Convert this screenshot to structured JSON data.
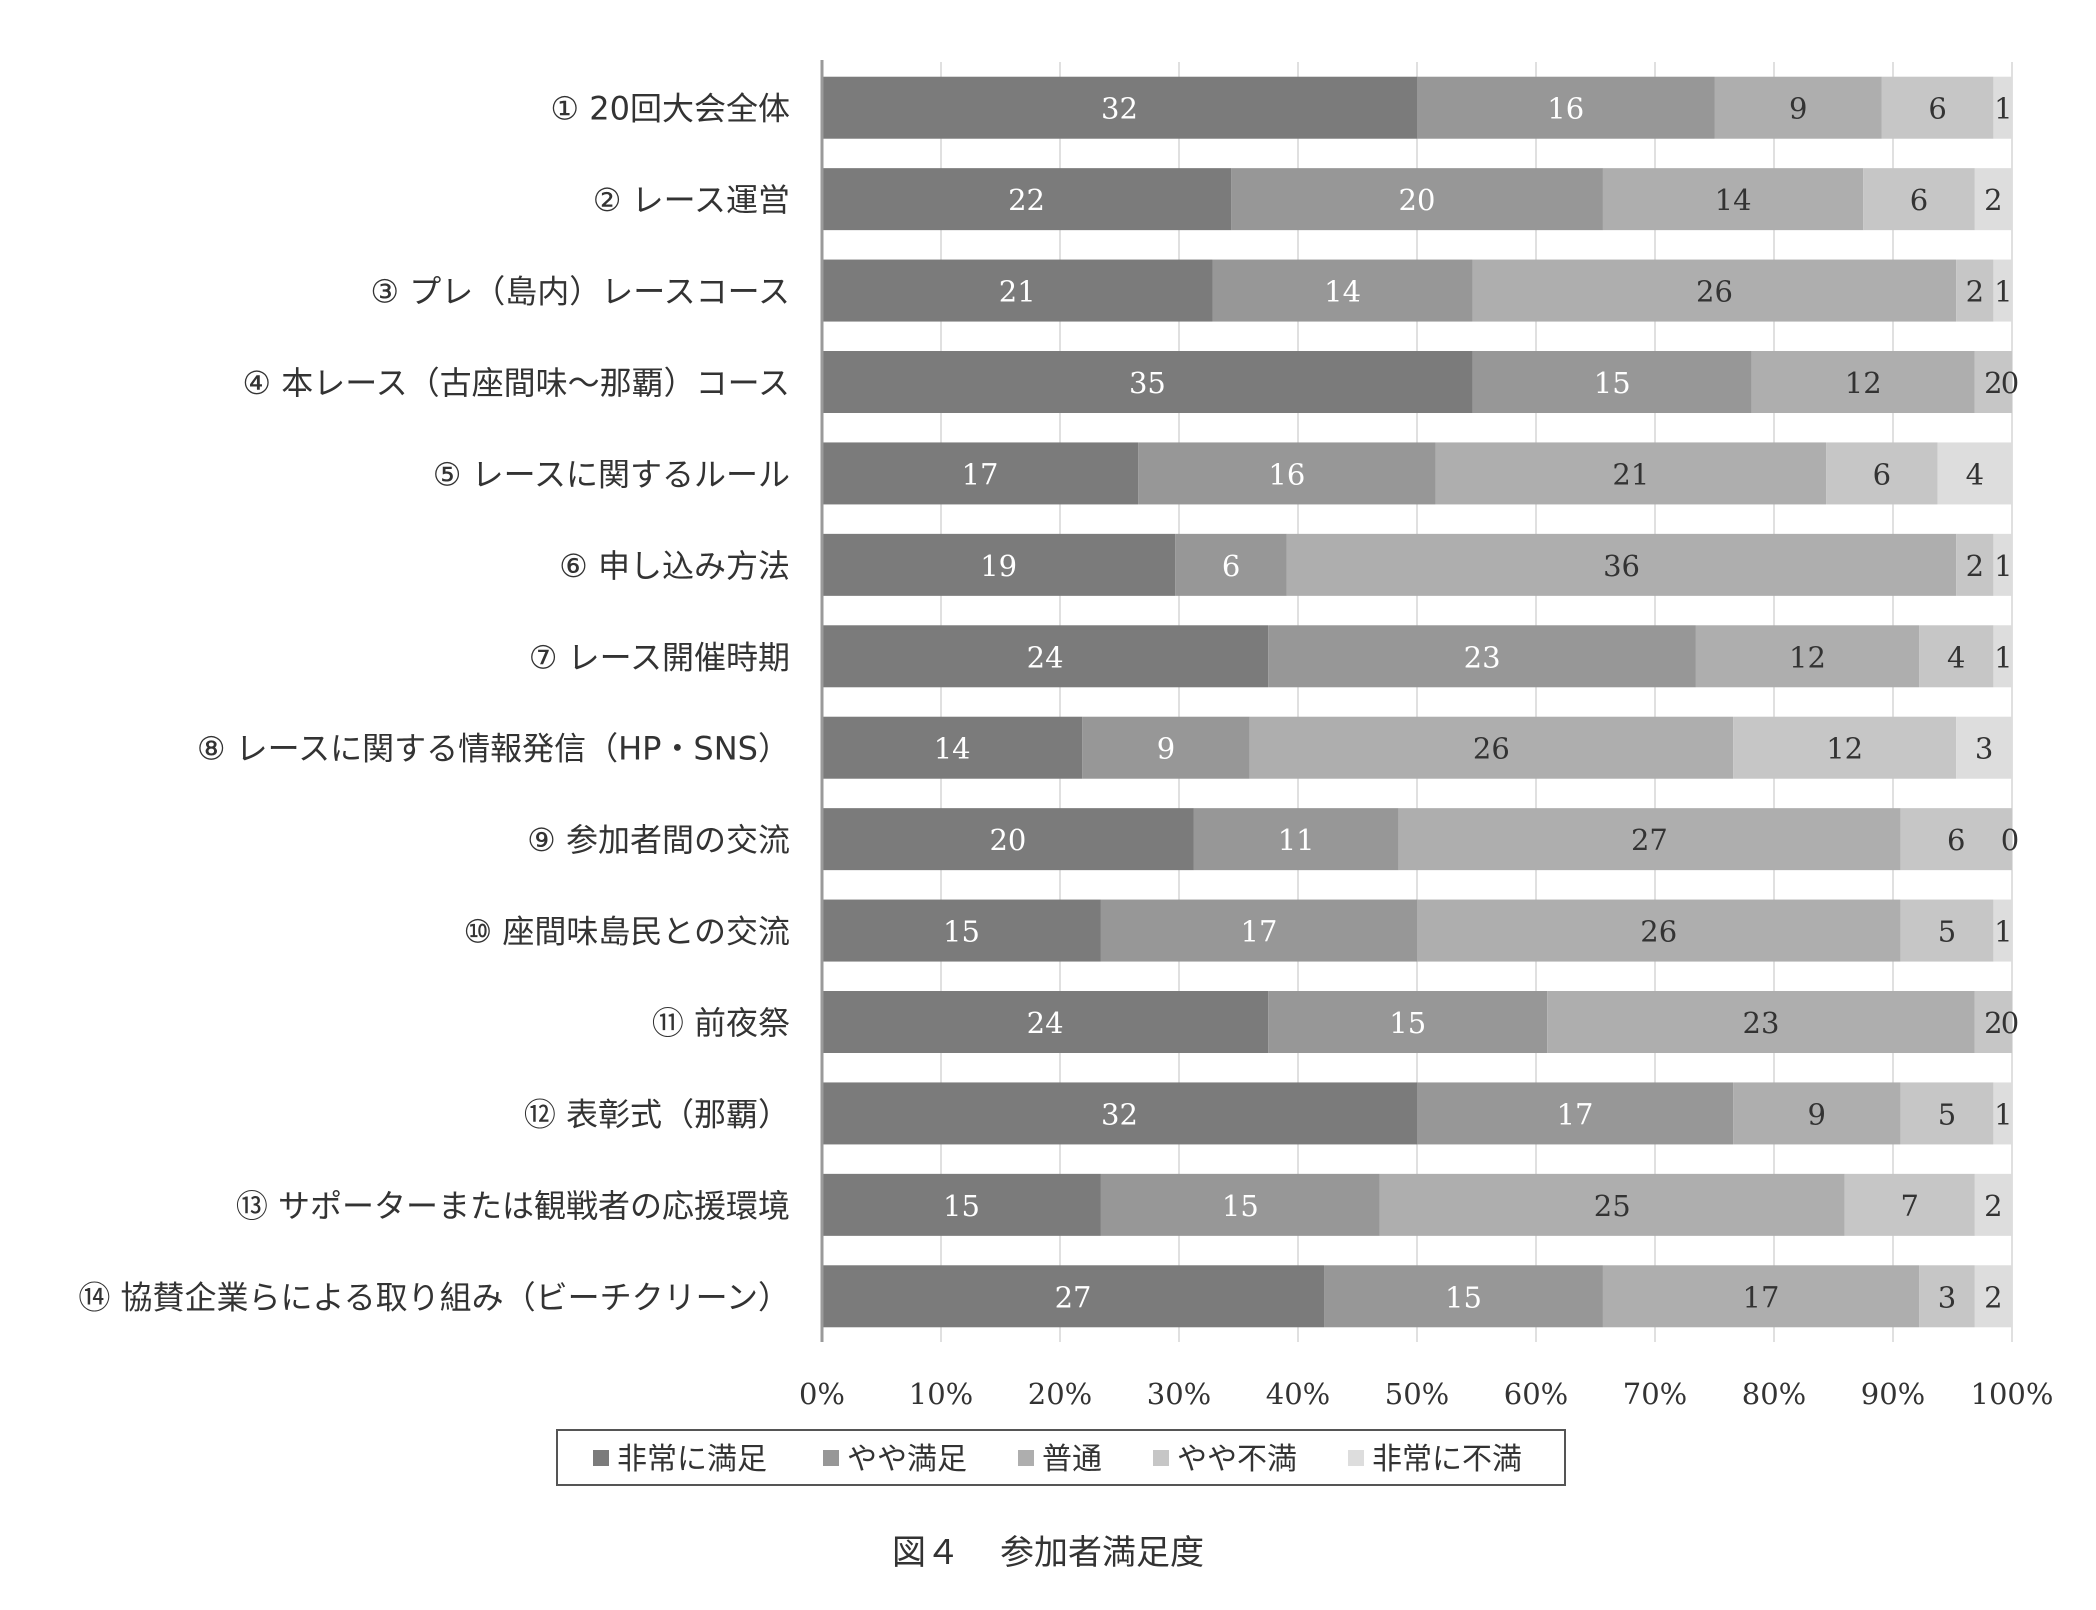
{
  "chart_data": {
    "type": "bar",
    "orientation": "horizontal",
    "stacked": true,
    "normalized": true,
    "title": "図４　参加者満足度",
    "categories": [
      "① 20回大会全体",
      "② レース運営",
      "③ プレ（島内）レースコース",
      "④ 本レース（古座間味～那覇）コース",
      "⑤ レースに関するルール",
      "⑥ 申し込み方法",
      "⑦ レース開催時期",
      "⑧ レースに関する情報発信（HP・SNS）",
      "⑨ 参加者間の交流",
      "⑩ 座間味島民との交流",
      "⑪ 前夜祭",
      "⑫ 表彰式（那覇）",
      "⑬ サポーターまたは観戦者の応援環境",
      "⑭ 協賛企業らによる取り組み（ビーチクリーン）"
    ],
    "series": [
      {
        "name": "非常に満足",
        "color": "#7b7b7b",
        "values": [
          32,
          22,
          21,
          35,
          17,
          19,
          24,
          14,
          20,
          15,
          24,
          32,
          15,
          27
        ]
      },
      {
        "name": "やや満足",
        "color": "#979797",
        "values": [
          16,
          20,
          14,
          15,
          16,
          6,
          23,
          9,
          11,
          17,
          15,
          17,
          15,
          15
        ]
      },
      {
        "name": "普通",
        "color": "#aeaeae",
        "values": [
          9,
          14,
          26,
          12,
          21,
          36,
          12,
          26,
          27,
          26,
          23,
          9,
          25,
          17
        ]
      },
      {
        "name": "やや不満",
        "color": "#c6c6c6",
        "values": [
          6,
          6,
          2,
          2,
          6,
          2,
          4,
          12,
          6,
          5,
          2,
          5,
          7,
          3
        ]
      },
      {
        "name": "非常に不満",
        "color": "#dddddd",
        "values": [
          1,
          2,
          1,
          0,
          4,
          1,
          1,
          3,
          0,
          1,
          0,
          1,
          2,
          2
        ]
      }
    ],
    "xlim": [
      0,
      100
    ],
    "xticks": [
      "0%",
      "10%",
      "20%",
      "30%",
      "40%",
      "50%",
      "60%",
      "70%",
      "80%",
      "90%",
      "100%"
    ],
    "grid": true,
    "legend_position": "bottom"
  },
  "caption": {
    "figure_no": "図４",
    "title": "参加者満足度"
  }
}
